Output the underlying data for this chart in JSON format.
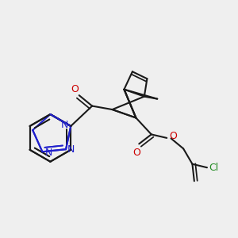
{
  "bg_color": "#efefef",
  "bond_color": "#1a1a1a",
  "N_color": "#2020cc",
  "O_color": "#cc0000",
  "Cl_color": "#228B22",
  "lw": 1.5,
  "fs": 9.0,
  "xlim": [
    0,
    10
  ],
  "ylim": [
    0,
    10
  ]
}
